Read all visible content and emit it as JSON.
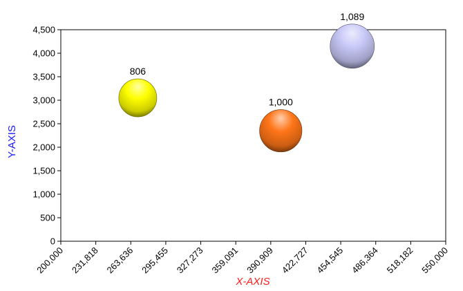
{
  "chart_data": {
    "type": "bubble",
    "xlabel": "X-AXIS",
    "ylabel": "Y-AXIS",
    "xlim": [
      200000,
      550000
    ],
    "ylim": [
      0,
      4500
    ],
    "x_ticks": [
      "200,000",
      "231,818",
      "263,636",
      "295,455",
      "327,273",
      "359,091",
      "390,909",
      "422,727",
      "454,545",
      "486,364",
      "518,182",
      "550,000"
    ],
    "y_ticks": [
      "0",
      "500",
      "1,000",
      "1,500",
      "2,000",
      "2,500",
      "3,000",
      "3,500",
      "4,000",
      "4,500"
    ],
    "grid": false,
    "points": [
      {
        "x": 270000,
        "y": 3050,
        "size": 806,
        "label": "806",
        "color": "#ffff00"
      },
      {
        "x": 400000,
        "y": 2350,
        "size": 1000,
        "label": "1,000",
        "color": "#ff7518"
      },
      {
        "x": 465000,
        "y": 4150,
        "size": 1089,
        "label": "1,089",
        "color": "#c8c8f8"
      }
    ]
  }
}
